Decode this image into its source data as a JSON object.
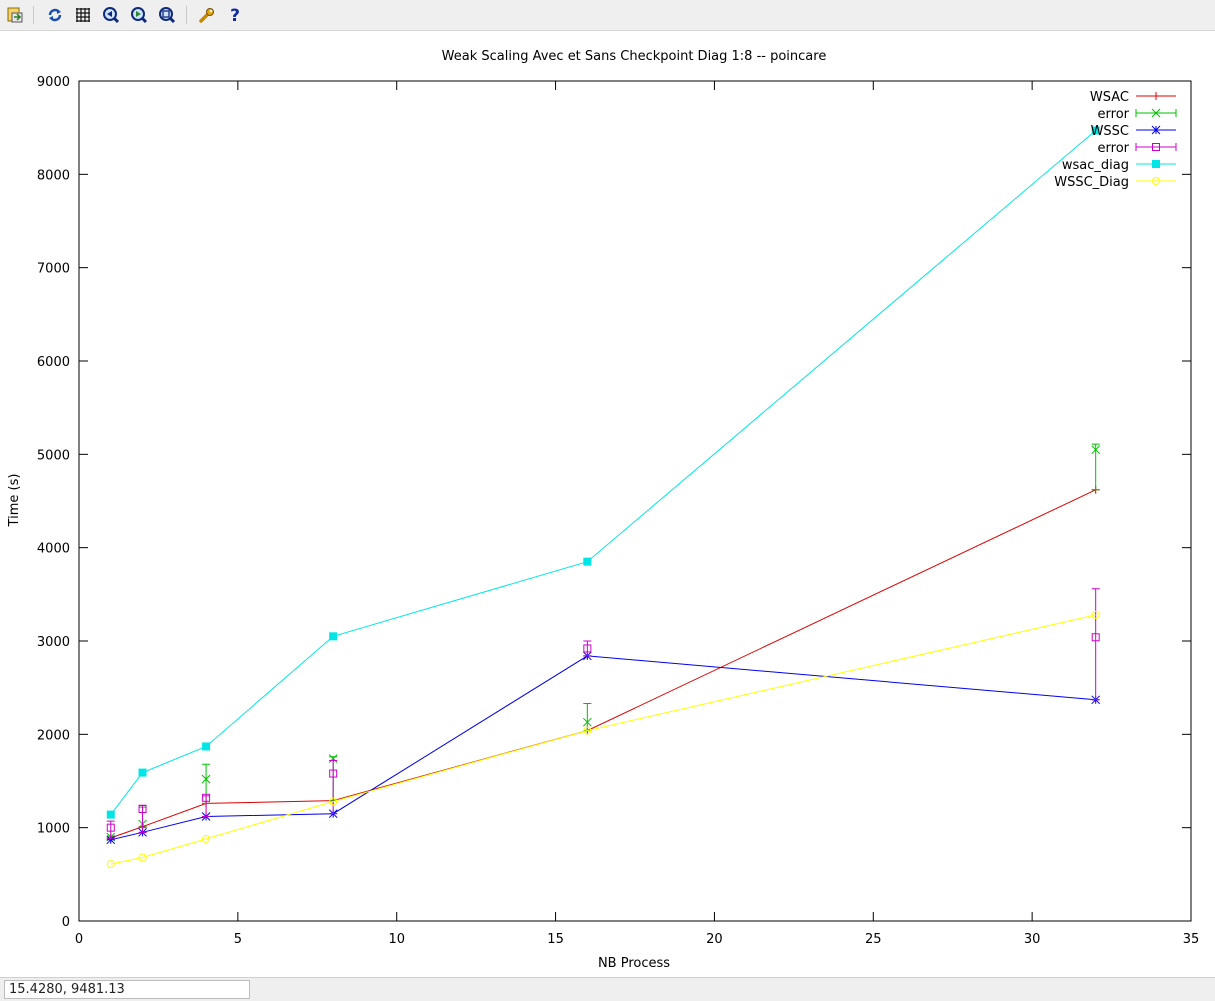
{
  "toolbar": {
    "buttons": [
      {
        "name": "export-icon",
        "tooltip": "Export"
      },
      {
        "name": "replot-icon",
        "tooltip": "Replot"
      },
      {
        "name": "grid-icon",
        "tooltip": "Grid"
      },
      {
        "name": "zoom-previous-icon",
        "tooltip": "Previous zoom"
      },
      {
        "name": "zoom-next-icon",
        "tooltip": "Next zoom"
      },
      {
        "name": "autoscale-icon",
        "tooltip": "Autoscale"
      },
      {
        "name": "settings-wrench-icon",
        "tooltip": "Settings"
      },
      {
        "name": "help-icon",
        "tooltip": "Help"
      }
    ]
  },
  "status": {
    "coords": "15.4280,  9481.13"
  },
  "colors": {
    "WSAC": "#e00000",
    "error_green": "#00c000",
    "WSSC": "#0000ee",
    "error_magenta": "#cc00cc",
    "wsac_diag": "#00e6e6",
    "WSSC_Diag": "#ffff00"
  },
  "chart_data": {
    "type": "line",
    "title": "Weak Scaling Avec et Sans Checkpoint Diag 1:8 -- poincare",
    "xlabel": "NB Process",
    "ylabel": "Time (s)",
    "xlim": [
      0,
      35
    ],
    "ylim": [
      0,
      9000
    ],
    "xticks": [
      0,
      5,
      10,
      15,
      20,
      25,
      30,
      35
    ],
    "yticks": [
      0,
      1000,
      2000,
      3000,
      4000,
      5000,
      6000,
      7000,
      8000,
      9000
    ],
    "grid": false,
    "legend_position": "top-right",
    "series": [
      {
        "name": "WSAC",
        "kind": "line",
        "marker": "plus",
        "color": "#e00000",
        "x": [
          1,
          2,
          4,
          8,
          16,
          32
        ],
        "y": [
          890,
          1010,
          1260,
          1290,
          2040,
          4620
        ]
      },
      {
        "name": "error",
        "kind": "errorbar",
        "marker": "cross",
        "color": "#00c000",
        "x": [
          1,
          2,
          4,
          8,
          16,
          32
        ],
        "y": [
          900,
          1040,
          1520,
          1740,
          2130,
          5050
        ],
        "low": [
          880,
          1000,
          1260,
          1290,
          2040,
          4620
        ],
        "high": [
          910,
          1220,
          1680,
          1760,
          2330,
          5110
        ]
      },
      {
        "name": "WSSC",
        "kind": "line",
        "marker": "star",
        "color": "#0000ee",
        "x": [
          1,
          2,
          4,
          8,
          16,
          32
        ],
        "y": [
          870,
          950,
          1120,
          1150,
          2840,
          2370
        ]
      },
      {
        "name": "error",
        "kind": "errorbar",
        "marker": "square",
        "color": "#cc00cc",
        "x": [
          1,
          2,
          4,
          8,
          16,
          32
        ],
        "y": [
          1000,
          1200,
          1320,
          1580,
          2920,
          3040
        ],
        "low": [
          880,
          950,
          1120,
          1150,
          2840,
          2370
        ],
        "high": [
          1070,
          1240,
          1340,
          1720,
          3000,
          3560
        ]
      },
      {
        "name": "wsac_diag",
        "kind": "line",
        "marker": "filled-square",
        "color": "#00e6e6",
        "x": [
          1,
          2,
          4,
          8,
          16,
          32
        ],
        "y": [
          1140,
          1590,
          1870,
          3050,
          3850,
          8470
        ]
      },
      {
        "name": "WSSC_Diag",
        "kind": "line",
        "marker": "circle",
        "color": "#ffff00",
        "x": [
          1,
          2,
          4,
          8,
          16,
          32
        ],
        "y": [
          610,
          680,
          880,
          1280,
          2040,
          3280
        ]
      }
    ]
  }
}
